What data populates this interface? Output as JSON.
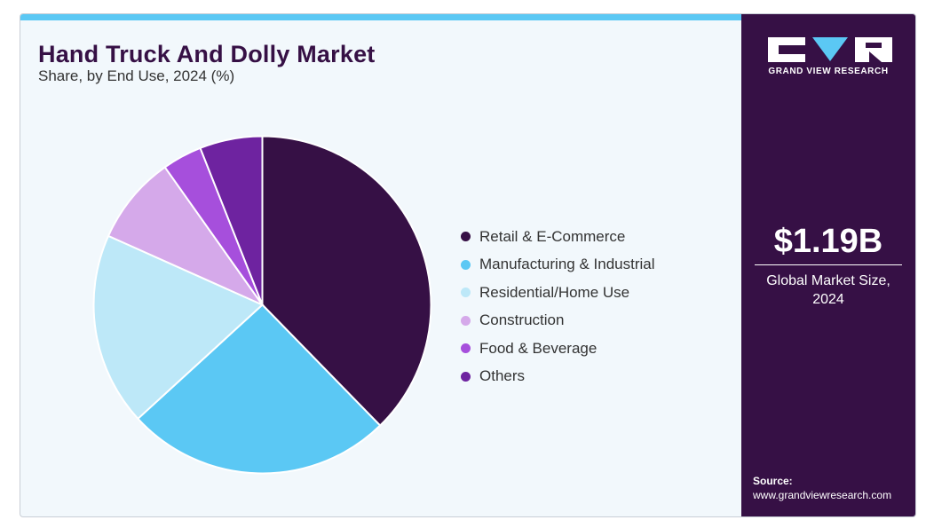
{
  "header": {
    "title": "Hand Truck And Dolly Market",
    "subtitle": "Share, by End Use, 2024 (%)"
  },
  "chart_data": {
    "type": "pie",
    "title": "Hand Truck And Dolly Market",
    "subtitle": "Share, by End Use, 2024 (%)",
    "categories": [
      "Retail & E-Commerce",
      "Manufacturing & Industrial",
      "Residential/Home Use",
      "Construction",
      "Food & Beverage",
      "Others"
    ],
    "values": [
      37.7,
      25.5,
      18.5,
      8.5,
      3.8,
      6.0
    ],
    "colors": [
      "#361045",
      "#5bc8f4",
      "#bde8f8",
      "#d5a9ea",
      "#a64fdc",
      "#6e23a0"
    ],
    "unit": "%",
    "legend_position": "right"
  },
  "sidebar": {
    "logo_text": "GRAND VIEW RESEARCH",
    "market_value": "$1.19B",
    "market_label": "Global Market Size, 2024",
    "source_label": "Source:",
    "source_url": "www.grandviewresearch.com"
  },
  "colors": {
    "accent": "#5bc8f4",
    "brand_dark": "#361045",
    "panel_background": "#f2f8fc"
  }
}
